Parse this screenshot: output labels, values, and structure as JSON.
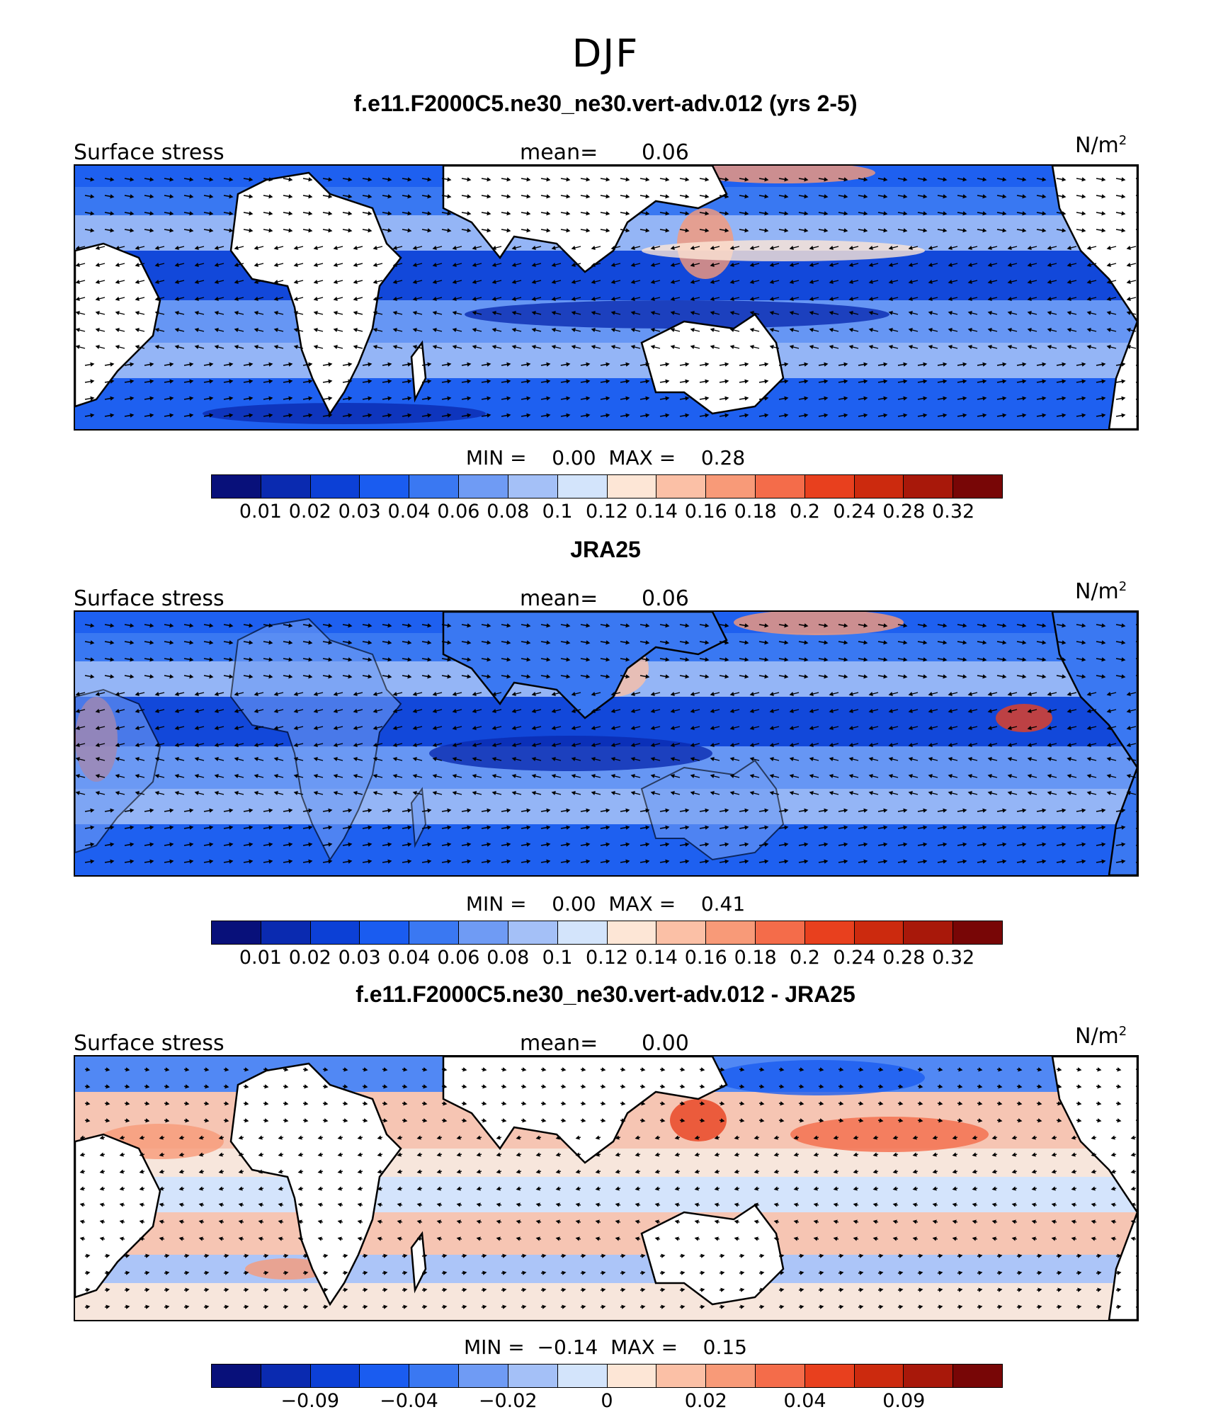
{
  "figure": {
    "season": "DJF"
  },
  "colorbar_colors": [
    "#08107a",
    "#0a2ab0",
    "#0c40d6",
    "#1a5cf0",
    "#3a78f2",
    "#6f9bf4",
    "#a4c0f7",
    "#d3e4fb",
    "#fde6d6",
    "#fbc0a6",
    "#f89a78",
    "#f46c4a",
    "#e8401e",
    "#cc2a0e",
    "#a8180a",
    "#780606"
  ],
  "panels": [
    {
      "title": "f.e11.F2000C5.ne30_ne30.vert-adv.012 (yrs 2-5)",
      "variable": "Surface stress",
      "mean_label": "mean=",
      "mean": "0.06",
      "units": "N/m",
      "units_sup": "2",
      "min_label": "MIN =",
      "min": "0.00",
      "max_label": "MAX =",
      "max": "0.28",
      "colorbar_ticks": [
        "0.01",
        "0.02",
        "0.03",
        "0.04",
        "0.06",
        "0.08",
        "0.1",
        "0.12",
        "0.14",
        "0.16",
        "0.18",
        "0.2",
        "0.24",
        "0.28",
        "0.32"
      ],
      "kind": "model"
    },
    {
      "title": "JRA25",
      "variable": "Surface stress",
      "mean_label": "mean=",
      "mean": "0.06",
      "units": "N/m",
      "units_sup": "2",
      "min_label": "MIN =",
      "min": "0.00",
      "max_label": "MAX =",
      "max": "0.41",
      "colorbar_ticks": [
        "0.01",
        "0.02",
        "0.03",
        "0.04",
        "0.06",
        "0.08",
        "0.1",
        "0.12",
        "0.14",
        "0.16",
        "0.18",
        "0.2",
        "0.24",
        "0.28",
        "0.32"
      ],
      "kind": "obs"
    },
    {
      "title": "f.e11.F2000C5.ne30_ne30.vert-adv.012 - JRA25",
      "variable": "Surface stress",
      "mean_label": "mean=",
      "mean": "0.00",
      "units": "N/m",
      "units_sup": "2",
      "min_label": "MIN =",
      "min": "−0.14",
      "max_label": "MAX =",
      "max": "0.15",
      "colorbar_ticks": [
        "−0.09",
        "",
        "−0.04",
        "",
        "−0.02",
        "",
        "0",
        "",
        "0.02",
        "",
        "0.04",
        "",
        "0.09"
      ],
      "kind": "diff"
    }
  ]
}
